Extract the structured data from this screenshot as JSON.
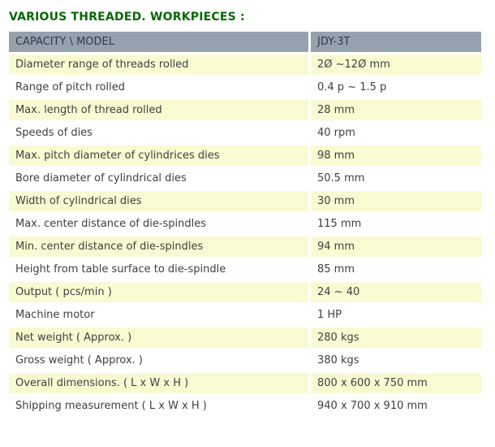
{
  "page": {
    "title": "VARIOUS THREADED. WORKPIECES :"
  },
  "colors": {
    "title_text": "#076807",
    "header_bg": "#95A1AD",
    "header_text": "#333A41",
    "row_alt_bg": "#FAFAD2",
    "row_bg": "#FFFFFF",
    "cell_text": "#3F3F3F",
    "page_bg": "#FFFFFF"
  },
  "table": {
    "header": {
      "capacity_model": "CAPACITY \\ MODEL",
      "model": "JDY-3T"
    },
    "rows": [
      {
        "label": "Diameter range of threads rolled",
        "value": "2Ø ~12Ø mm"
      },
      {
        "label": "Range of pitch rolled",
        "value": "0.4 p ~ 1.5 p"
      },
      {
        "label": "Max. length of thread rolled",
        "value": "28 mm"
      },
      {
        "label": "Speeds of dies",
        "value": "40 rpm"
      },
      {
        "label": "Max. pitch diameter of cylindrices dies",
        "value": "98 mm"
      },
      {
        "label": "Bore diameter of cylindrical dies",
        "value": "50.5 mm"
      },
      {
        "label": "Width of cylindrical dies",
        "value": "30 mm"
      },
      {
        "label": "Max. center distance of die-spindles",
        "value": "115 mm"
      },
      {
        "label": "Min. center distance of die-spindles",
        "value": "94 mm"
      },
      {
        "label": "Height from table surface to die-spindle",
        "value": "85 mm"
      },
      {
        "label": "Output ( pcs/min )",
        "value": "24 ~ 40"
      },
      {
        "label": "Machine motor",
        "value": "1 HP"
      },
      {
        "label": "Net weight ( Approx. )",
        "value": "280 kgs"
      },
      {
        "label": "Gross weight ( Approx. )",
        "value": "380 kgs"
      },
      {
        "label": "Overall dimensions. ( L x W x H )",
        "value": "800 x 600 x 750 mm"
      },
      {
        "label": "Shipping measurement ( L x W x H )",
        "value": "940 x 700 x 910 mm"
      }
    ]
  }
}
